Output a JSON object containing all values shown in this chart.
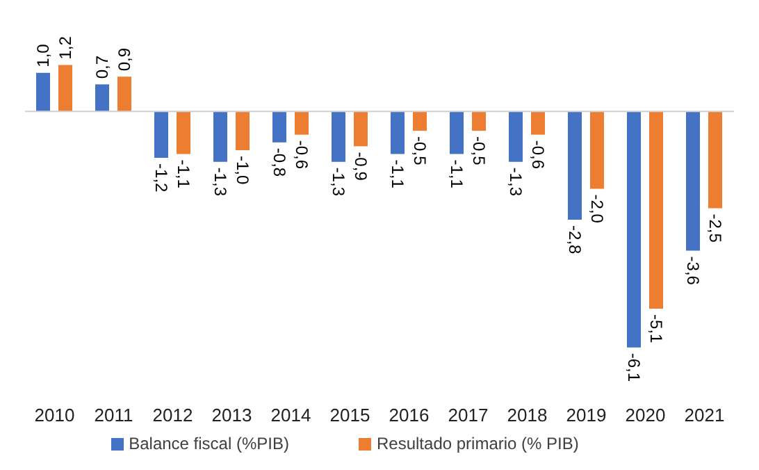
{
  "chart_data": {
    "type": "bar",
    "categories": [
      "2010",
      "2011",
      "2012",
      "2013",
      "2014",
      "2015",
      "2016",
      "2017",
      "2018",
      "2019",
      "2020",
      "2021"
    ],
    "series": [
      {
        "name": "Balance fiscal (%PIB)",
        "color": "#4472c4",
        "values": [
          1.0,
          0.7,
          -1.2,
          -1.3,
          -0.8,
          -1.3,
          -1.1,
          -1.1,
          -1.3,
          -2.8,
          -6.1,
          -3.6
        ],
        "value_labels": [
          "1,0",
          "0,7",
          "-1,2",
          "-1,3",
          "-0,8",
          "-1,3",
          "-1,1",
          "-1,1",
          "-1,3",
          "-2,8",
          "-6,1",
          "-3,6"
        ]
      },
      {
        "name": "Resultado primario (% PIB)",
        "color": "#ed7d31",
        "values": [
          1.2,
          0.9,
          -1.1,
          -1.0,
          -0.6,
          -0.9,
          -0.5,
          -0.5,
          -0.6,
          -2.0,
          -5.1,
          -2.5
        ],
        "value_labels": [
          "1,2",
          "0,9",
          "-1,1",
          "-1,0",
          "-0,6",
          "-0,9",
          "-0,5",
          "-0,5",
          "-0,6",
          "-2,0",
          "-5,1",
          "-2,5"
        ]
      }
    ],
    "legend": "bottom"
  }
}
